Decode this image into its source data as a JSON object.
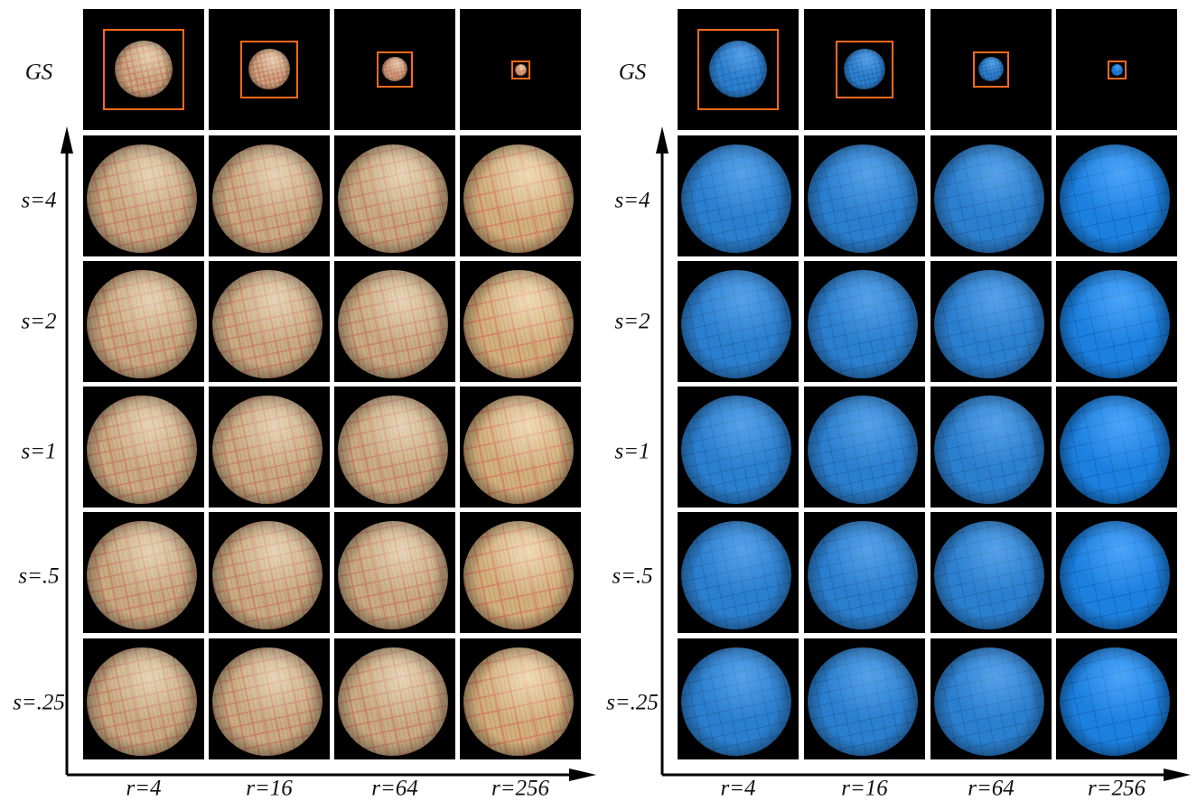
{
  "panels": [
    {
      "id": "left",
      "texture": "wood",
      "row_labels": [
        "GS",
        "s=4",
        "s=2",
        "s=1",
        "s=.5",
        "s=.25"
      ],
      "col_labels": [
        "r=4",
        "r=16",
        "r=64",
        "r=256"
      ],
      "accent": "#ff6a1a"
    },
    {
      "id": "right",
      "texture": "blue",
      "row_labels": [
        "GS",
        "s=4",
        "s=2",
        "s=1",
        "s=.5",
        "s=.25"
      ],
      "col_labels": [
        "r=4",
        "r=16",
        "r=64",
        "r=256"
      ],
      "accent": "#ff6a1a"
    }
  ]
}
